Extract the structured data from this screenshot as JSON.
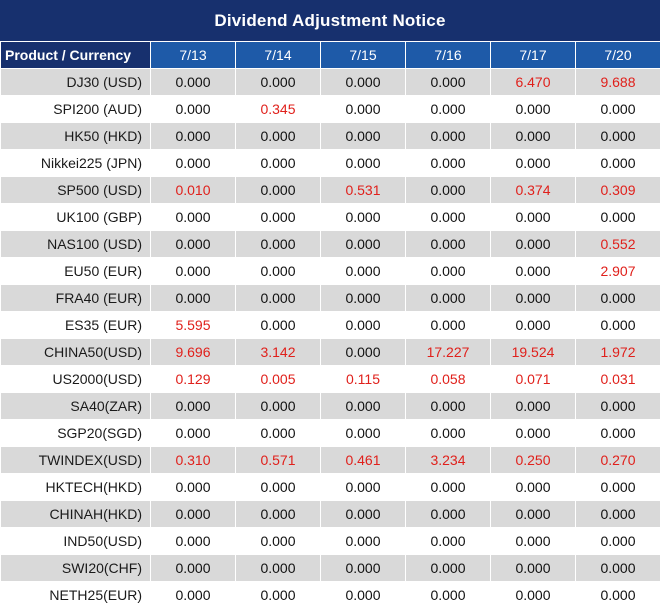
{
  "title": "Dividend Adjustment Notice",
  "colors": {
    "header_dark": "#17306e",
    "header_blue": "#1e5aa8",
    "row_shade": "#d9d9d9",
    "highlight": "#e0201b"
  },
  "table": {
    "header": [
      "Product / Currency",
      "7/13",
      "7/14",
      "7/15",
      "7/16",
      "7/17",
      "7/20"
    ],
    "rows": [
      [
        "DJ30 (USD)",
        "0.000",
        "0.000",
        "0.000",
        "0.000",
        "6.470",
        "9.688"
      ],
      [
        "SPI200 (AUD)",
        "0.000",
        "0.345",
        "0.000",
        "0.000",
        "0.000",
        "0.000"
      ],
      [
        "HK50 (HKD)",
        "0.000",
        "0.000",
        "0.000",
        "0.000",
        "0.000",
        "0.000"
      ],
      [
        "Nikkei225 (JPN)",
        "0.000",
        "0.000",
        "0.000",
        "0.000",
        "0.000",
        "0.000"
      ],
      [
        "SP500 (USD)",
        "0.010",
        "0.000",
        "0.531",
        "0.000",
        "0.374",
        "0.309"
      ],
      [
        "UK100 (GBP)",
        "0.000",
        "0.000",
        "0.000",
        "0.000",
        "0.000",
        "0.000"
      ],
      [
        "NAS100 (USD)",
        "0.000",
        "0.000",
        "0.000",
        "0.000",
        "0.000",
        "0.552"
      ],
      [
        "EU50 (EUR)",
        "0.000",
        "0.000",
        "0.000",
        "0.000",
        "0.000",
        "2.907"
      ],
      [
        "FRA40 (EUR)",
        "0.000",
        "0.000",
        "0.000",
        "0.000",
        "0.000",
        "0.000"
      ],
      [
        "ES35 (EUR)",
        "5.595",
        "0.000",
        "0.000",
        "0.000",
        "0.000",
        "0.000"
      ],
      [
        "CHINA50(USD)",
        "9.696",
        "3.142",
        "0.000",
        "17.227",
        "19.524",
        "1.972"
      ],
      [
        "US2000(USD)",
        "0.129",
        "0.005",
        "0.115",
        "0.058",
        "0.071",
        "0.031"
      ],
      [
        "SA40(ZAR)",
        "0.000",
        "0.000",
        "0.000",
        "0.000",
        "0.000",
        "0.000"
      ],
      [
        "SGP20(SGD)",
        "0.000",
        "0.000",
        "0.000",
        "0.000",
        "0.000",
        "0.000"
      ],
      [
        "TWINDEX(USD)",
        "0.310",
        "0.571",
        "0.461",
        "3.234",
        "0.250",
        "0.270"
      ],
      [
        "HKTECH(HKD)",
        "0.000",
        "0.000",
        "0.000",
        "0.000",
        "0.000",
        "0.000"
      ],
      [
        "CHINAH(HKD)",
        "0.000",
        "0.000",
        "0.000",
        "0.000",
        "0.000",
        "0.000"
      ],
      [
        "IND50(USD)",
        "0.000",
        "0.000",
        "0.000",
        "0.000",
        "0.000",
        "0.000"
      ],
      [
        "SWI20(CHF)",
        "0.000",
        "0.000",
        "0.000",
        "0.000",
        "0.000",
        "0.000"
      ],
      [
        "NETH25(EUR)",
        "0.000",
        "0.000",
        "0.000",
        "0.000",
        "0.000",
        "0.000"
      ]
    ]
  }
}
